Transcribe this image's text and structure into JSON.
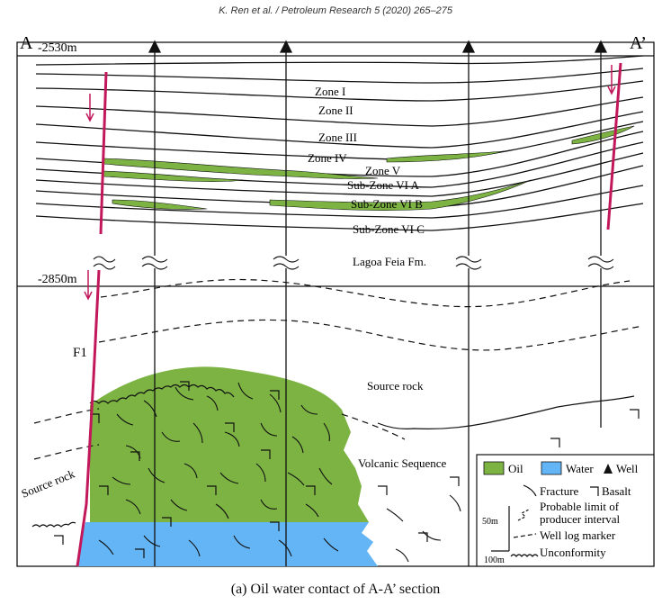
{
  "header": "K. Ren et al. / Petroleum Research 5 (2020) 265–275",
  "section": {
    "left_label": "A",
    "right_label": "A’",
    "depth_top": "-2530m",
    "depth_bottom": "-2850m",
    "fault": "F1"
  },
  "zones": [
    "Zone I",
    "Zone II",
    "Zone III",
    "Zone IV",
    "Zone V",
    "Sub-Zone VI A",
    "Sub-Zone VI B",
    "Sub-Zone VI C"
  ],
  "formations": {
    "lagoa": "Lagoa Feia Fm.",
    "source_rock_right": "Source rock",
    "source_rock_left": "Source rock",
    "volcanic": "Volcanic Sequence"
  },
  "legend": {
    "oil": "Oil",
    "water": "Water",
    "well": "Well",
    "fracture": "Fracture",
    "basalt": "Basalt",
    "producer_1": "Probable limit of",
    "producer_2": "producer interval",
    "marker": "Well log marker",
    "unconformity": "Unconformity",
    "scale_v": "50m",
    "scale_h": "100m"
  },
  "colors": {
    "oil": "#7cb342",
    "water": "#64b5f6",
    "fault": "#c2185b"
  },
  "caption": "(a) Oil water contact of A-A’ section"
}
